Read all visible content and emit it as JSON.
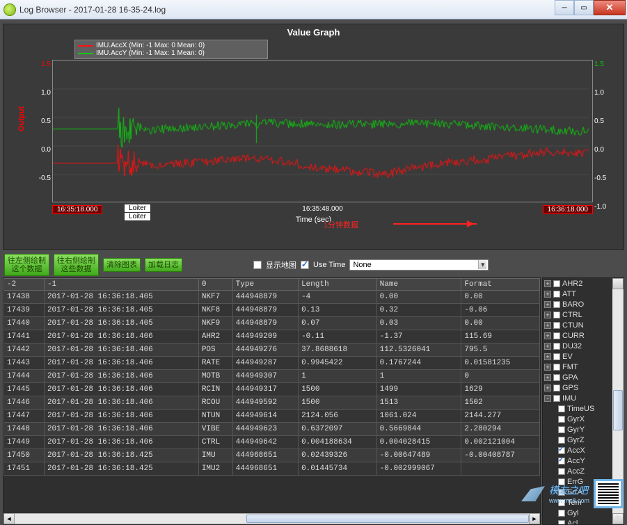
{
  "window": {
    "title": "Log Browser - 2017-01-28 16-35-24.log"
  },
  "graph": {
    "title": "Value Graph",
    "ylabel": "Output",
    "xlabel": "Time (sec)",
    "legend": [
      {
        "label": "IMU.AccX (Min: -1 Max: 0 Mean: 0)",
        "color": "#ff1010"
      },
      {
        "label": "IMU.AccY (Min: -1 Max: 1 Mean: 0)",
        "color": "#10c810"
      }
    ],
    "yticks_left": [
      "1.5",
      "1.0",
      "0.5",
      "0.0",
      "-0.5"
    ],
    "yticks_right": [
      "1.5",
      "1.0",
      "0.5",
      "0.0",
      "-0.5",
      "-1.0"
    ],
    "xticks": [
      "16:35:18.000",
      "16:35:48.000",
      "16:36:18.000"
    ],
    "annotation": "1分钟数据",
    "loiter": "Loiter",
    "series": {
      "accx": {
        "color": "#ff1010",
        "baseline": -0.3,
        "amp_phase": [
          [
            0.08,
            0.45
          ],
          [
            0.12,
            0.22
          ],
          [
            0.14,
            0.15
          ],
          [
            0.16,
            0.1
          ]
        ],
        "burst_end": 0.18,
        "burst_amp": 0.45,
        "wave": [
          [
            0.25,
            -0.3
          ],
          [
            0.38,
            -0.2
          ],
          [
            0.5,
            -0.38
          ],
          [
            0.62,
            -0.5
          ],
          [
            0.72,
            -0.3
          ],
          [
            0.82,
            -0.22
          ],
          [
            0.92,
            -0.1
          ],
          [
            1.0,
            -0.12
          ]
        ]
      },
      "accy": {
        "color": "#10c810",
        "baseline": 0.3,
        "amp_phase": [
          [
            0.08,
            0.4
          ],
          [
            0.12,
            0.25
          ],
          [
            0.14,
            0.18
          ],
          [
            0.16,
            0.12
          ]
        ],
        "burst_end": 0.18,
        "burst_amp": 0.4,
        "wave": [
          [
            0.25,
            0.32
          ],
          [
            0.4,
            0.4
          ],
          [
            0.55,
            0.38
          ],
          [
            0.7,
            0.4
          ],
          [
            0.85,
            0.32
          ],
          [
            1.0,
            0.25
          ]
        ]
      }
    },
    "ylim": [
      -1.0,
      1.5
    ],
    "bg": "#3a3a3a",
    "grid": "#666666"
  },
  "toolbar": {
    "btn1a": "往左侧绘制",
    "btn1b": "这个数据",
    "btn2a": "往右侧绘制",
    "btn2b": "这些数据",
    "btn3": "清除图表",
    "btn4": "加载日志",
    "showmap": "显示地图",
    "usetime": "Use Time",
    "combo": "None"
  },
  "table": {
    "headers": [
      "-2",
      "-1",
      "0",
      "Type",
      "Length",
      "Name",
      "Format"
    ],
    "rows": [
      [
        "17438",
        "2017-01-28 16:36:18.405",
        "NKF7",
        "444948879",
        "-4",
        "0.00",
        "0.00"
      ],
      [
        "17439",
        "2017-01-28 16:36:18.405",
        "NKF8",
        "444948879",
        "0.13",
        "0.32",
        "-0.06"
      ],
      [
        "17440",
        "2017-01-28 16:36:18.405",
        "NKF9",
        "444948879",
        "0.07",
        "0.03",
        "0.00"
      ],
      [
        "17441",
        "2017-01-28 16:36:18.406",
        "AHR2",
        "444949209",
        "-0.11",
        "-1.37",
        "115.69"
      ],
      [
        "17442",
        "2017-01-28 16:36:18.406",
        "POS",
        "444949276",
        "37.8688618",
        "112.5326041",
        "795.5"
      ],
      [
        "17443",
        "2017-01-28 16:36:18.406",
        "RATE",
        "444949287",
        "0.9945422",
        "0.1767244",
        "0.01581235"
      ],
      [
        "17444",
        "2017-01-28 16:36:18.406",
        "MOTB",
        "444949307",
        "1",
        "1",
        "0"
      ],
      [
        "17445",
        "2017-01-28 16:36:18.406",
        "RCIN",
        "444949317",
        "1500",
        "1499",
        "1629"
      ],
      [
        "17446",
        "2017-01-28 16:36:18.406",
        "RCOU",
        "444949592",
        "1500",
        "1513",
        "1502"
      ],
      [
        "17447",
        "2017-01-28 16:36:18.406",
        "NTUN",
        "444949614",
        "2124.056",
        "1061.024",
        "2144.277"
      ],
      [
        "17448",
        "2017-01-28 16:36:18.406",
        "VIBE",
        "444949623",
        "0.6372097",
        "0.5669844",
        "2.280294"
      ],
      [
        "17449",
        "2017-01-28 16:36:18.406",
        "CTRL",
        "444949642",
        "0.004188634",
        "0.004028415",
        "0.002121004"
      ],
      [
        "17450",
        "2017-01-28 16:36:18.425",
        "IMU",
        "444968651",
        "0.02439326",
        "-0.00647489",
        "-0.00408787"
      ],
      [
        "17451",
        "2017-01-28 16:36:18.425",
        "IMU2",
        "444968651",
        "0.01445734",
        "-0.002999067",
        ""
      ]
    ]
  },
  "tree": {
    "top": [
      "AHR2",
      "ATT",
      "BARO",
      "CTRL",
      "CTUN",
      "CURR",
      "DU32",
      "EV",
      "FMT",
      "GPA",
      "GPS"
    ],
    "imu": "IMU",
    "imu_children": [
      {
        "l": "TimeUS",
        "c": false
      },
      {
        "l": "GyrX",
        "c": false
      },
      {
        "l": "GyrY",
        "c": false
      },
      {
        "l": "GyrZ",
        "c": false
      },
      {
        "l": "AccX",
        "c": true
      },
      {
        "l": "AccY",
        "c": true
      },
      {
        "l": "AccZ",
        "c": false
      },
      {
        "l": "ErrG",
        "c": false
      },
      {
        "l": "ErrA",
        "c": false
      },
      {
        "l": "Tem",
        "c": false
      },
      {
        "l": "Gyl",
        "c": false
      },
      {
        "l": "Acl",
        "c": false
      }
    ]
  },
  "watermark": {
    "text": "模友之吧",
    "url": "www.mz8.com"
  }
}
